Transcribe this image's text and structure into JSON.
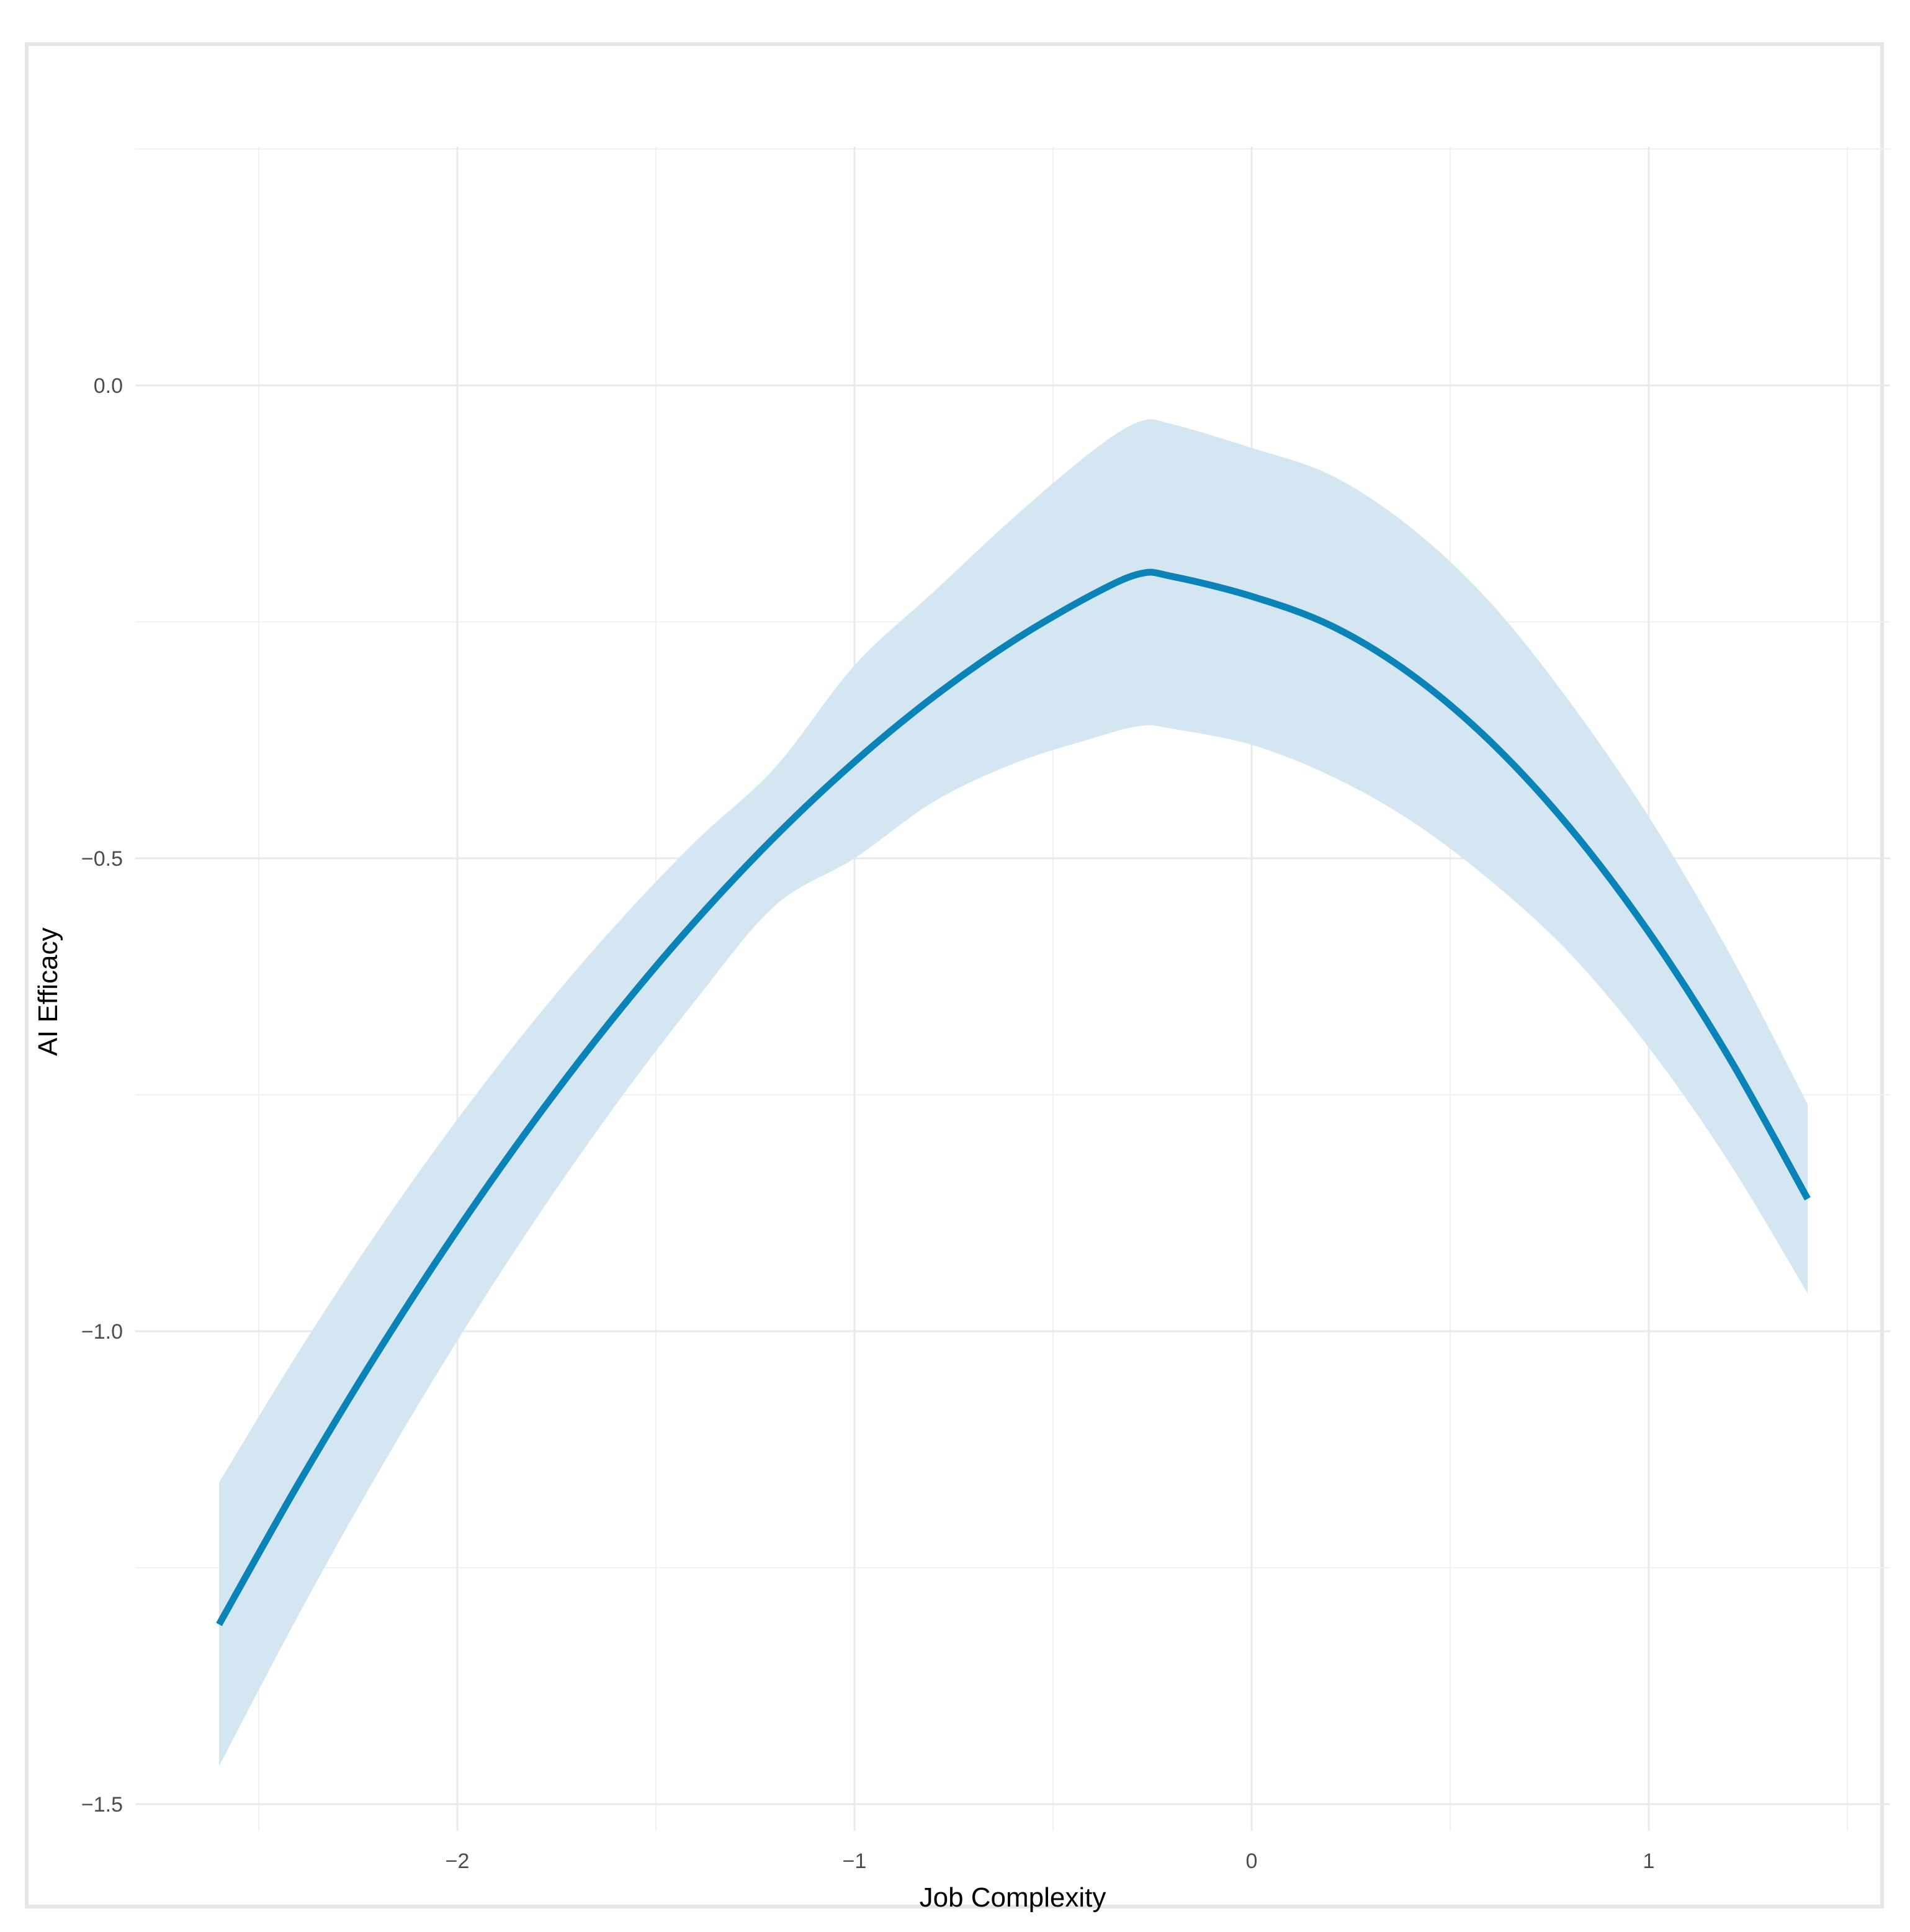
{
  "chart_data": {
    "type": "line",
    "title": "",
    "xlabel": "Job Complexity",
    "ylabel": "AI Efficacy",
    "xlim": [
      -2.6,
      1.6
    ],
    "ylim": [
      -1.55,
      0.25
    ],
    "x_ticks": [
      -2,
      -1,
      0,
      1
    ],
    "x_tick_labels": [
      "−2",
      "−1",
      "0",
      "1"
    ],
    "y_ticks": [
      0.0,
      -0.5,
      -1.0,
      -1.5
    ],
    "y_tick_labels": [
      "0.0",
      "−0.5",
      "−1.0",
      "−1.5"
    ],
    "grid": true,
    "legend": "none",
    "series": [
      {
        "x": [
          -2.6,
          -2.4,
          -2.2,
          -2.0,
          -1.8,
          -1.6,
          -1.4,
          -1.2,
          -1.0,
          -0.8,
          -0.6,
          -0.4,
          -0.28,
          -0.2,
          0.0,
          0.2,
          0.4,
          0.6,
          0.8,
          1.0,
          1.2,
          1.4
        ],
        "y": [
          -1.31,
          -1.161,
          -1.022,
          -0.893,
          -0.774,
          -0.665,
          -0.566,
          -0.477,
          -0.398,
          -0.329,
          -0.27,
          -0.221,
          -0.199,
          -0.202,
          -0.223,
          -0.254,
          -0.305,
          -0.376,
          -0.467,
          -0.578,
          -0.709,
          -0.86
        ],
        "lower": [
          -1.46,
          -1.3,
          -1.15,
          -1.01,
          -0.88,
          -0.76,
          -0.65,
          -0.55,
          -0.5,
          -0.44,
          -0.4,
          -0.373,
          -0.36,
          -0.363,
          -0.38,
          -0.413,
          -0.46,
          -0.523,
          -0.6,
          -0.7,
          -0.82,
          -0.96
        ],
        "upper": [
          -1.16,
          -1.022,
          -0.894,
          -0.776,
          -0.668,
          -0.57,
          -0.482,
          -0.404,
          -0.296,
          -0.218,
          -0.14,
          -0.069,
          -0.038,
          -0.041,
          -0.066,
          -0.095,
          -0.15,
          -0.229,
          -0.334,
          -0.456,
          -0.598,
          -0.76
        ]
      }
    ],
    "colors": {
      "line": "#0a83b8",
      "band": "#d4e6f1",
      "grid": "#e9e9e9",
      "frame": "#e6e6e6"
    }
  }
}
